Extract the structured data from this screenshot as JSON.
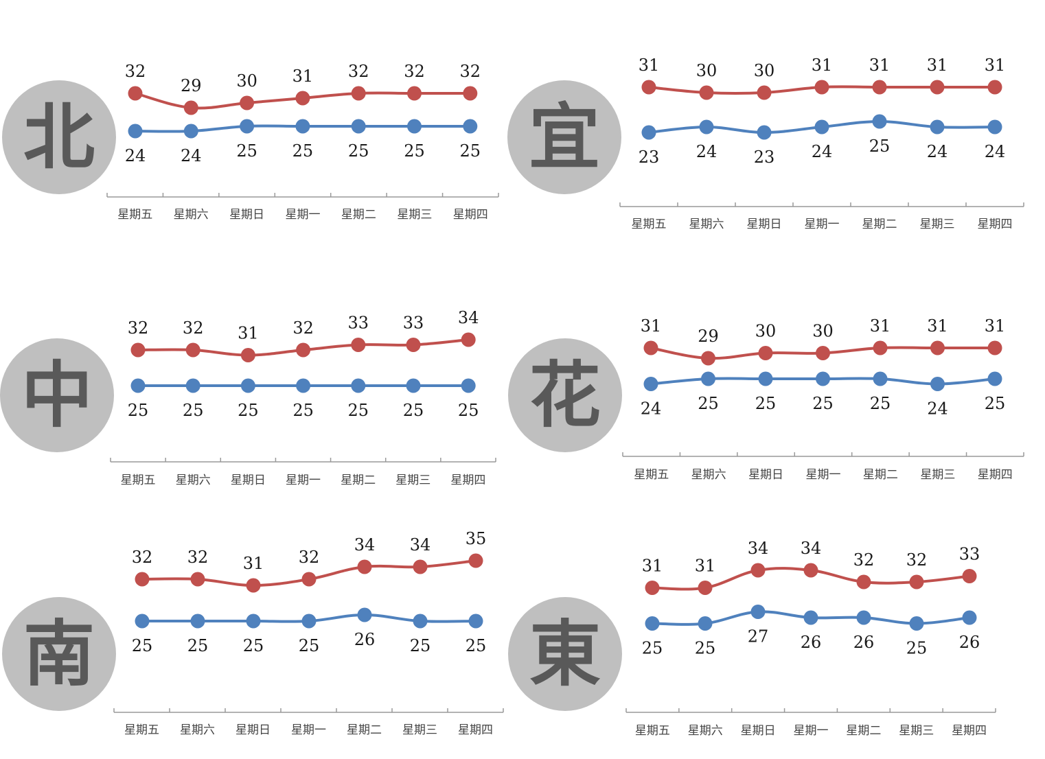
{
  "colors": {
    "high": "#c0504d",
    "low": "#4f81bd",
    "badge": "#bfbfbf",
    "badge_text": "#595959",
    "axis": "#999999"
  },
  "chart_data": [
    {
      "type": "line",
      "badge": "北",
      "categories": [
        "星期五",
        "星期六",
        "星期日",
        "星期一",
        "星期二",
        "星期三",
        "星期四"
      ],
      "series": [
        {
          "values": [
            32,
            29,
            30,
            31,
            32,
            32,
            32
          ]
        },
        {
          "values": [
            24,
            24,
            25,
            25,
            25,
            25,
            25
          ]
        }
      ]
    },
    {
      "type": "line",
      "badge": "宜",
      "categories": [
        "星期五",
        "星期六",
        "星期日",
        "星期一",
        "星期二",
        "星期三",
        "星期四"
      ],
      "series": [
        {
          "values": [
            31,
            30,
            30,
            31,
            31,
            31,
            31
          ]
        },
        {
          "values": [
            23,
            24,
            23,
            24,
            25,
            24,
            24
          ]
        }
      ]
    },
    {
      "type": "line",
      "badge": "中",
      "categories": [
        "星期五",
        "星期六",
        "星期日",
        "星期一",
        "星期二",
        "星期三",
        "星期四"
      ],
      "series": [
        {
          "values": [
            32,
            32,
            31,
            32,
            33,
            33,
            34
          ]
        },
        {
          "values": [
            25,
            25,
            25,
            25,
            25,
            25,
            25
          ]
        }
      ]
    },
    {
      "type": "line",
      "badge": "花",
      "categories": [
        "星期五",
        "星期六",
        "星期日",
        "星期一",
        "星期二",
        "星期三",
        "星期四"
      ],
      "series": [
        {
          "values": [
            31,
            29,
            30,
            30,
            31,
            31,
            31
          ]
        },
        {
          "values": [
            24,
            25,
            25,
            25,
            25,
            24,
            25
          ]
        }
      ]
    },
    {
      "type": "line",
      "badge": "南",
      "categories": [
        "星期五",
        "星期六",
        "星期日",
        "星期一",
        "星期二",
        "星期三",
        "星期四"
      ],
      "series": [
        {
          "values": [
            32,
            32,
            31,
            32,
            34,
            34,
            35
          ]
        },
        {
          "values": [
            25,
            25,
            25,
            25,
            26,
            25,
            25
          ]
        }
      ]
    },
    {
      "type": "line",
      "badge": "東",
      "categories": [
        "星期五",
        "星期六",
        "星期日",
        "星期一",
        "星期二",
        "星期三",
        "星期四"
      ],
      "series": [
        {
          "values": [
            31,
            31,
            34,
            34,
            32,
            32,
            33
          ]
        },
        {
          "values": [
            25,
            25,
            27,
            26,
            26,
            25,
            26
          ]
        }
      ]
    }
  ]
}
